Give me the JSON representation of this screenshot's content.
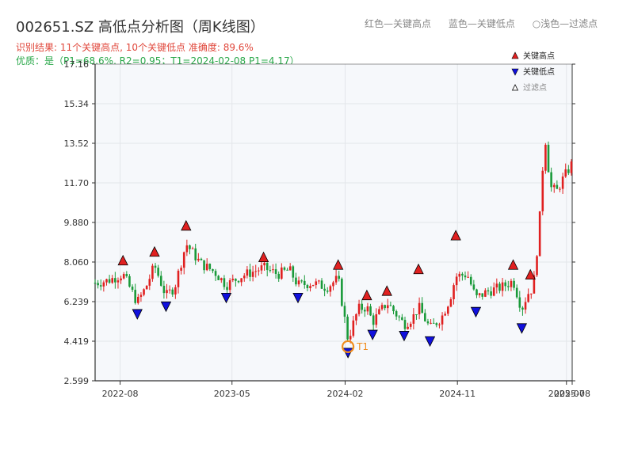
{
  "header": {
    "title": "002651.SZ 高低点分析图（周K线图）",
    "subtitle_items": [
      "红色—关键高点",
      "蓝色—关键低点",
      "○浅色—过滤点"
    ],
    "info_line1": "识别结果: 11个关键高点, 10个关键低点  准确度: 89.6%",
    "info_line2": "优质：是（P1=68.6%, R2=0.95；T1=2024-02-08 P1=4.17）"
  },
  "colors": {
    "up": "#e02020",
    "down": "#1a9a3a",
    "high_marker": "#e02020",
    "low_marker": "#1010dd",
    "t1_ring": "#f08c1c",
    "plot_bg": "#f6f8fb",
    "grid": "#e3e6ea",
    "axis": "#333333"
  },
  "chart_data": {
    "type": "candlestick",
    "y_ticks": [
      "2.599",
      "4.419",
      "6.239",
      "8.060",
      "9.880",
      "11.70",
      "13.52",
      "15.34",
      "17.16"
    ],
    "y_range": [
      2.599,
      17.16
    ],
    "x_range": [
      "2022-06-01",
      "2025-08-08"
    ],
    "x_ticks": [
      {
        "date": "2022-08-01",
        "label": "2022-08"
      },
      {
        "date": "2023-05-01",
        "label": "2023-05"
      },
      {
        "date": "2024-02-01",
        "label": "2024-02"
      },
      {
        "date": "2024-11-01",
        "label": "2024-11"
      },
      {
        "date": "2025-07-25",
        "label": "2025-07"
      },
      {
        "date": "2025-08-08",
        "label": "2025-08"
      }
    ],
    "legend": [
      {
        "label": "关键高点",
        "marker": "high"
      },
      {
        "label": "关键低点",
        "marker": "low"
      },
      {
        "label": "过滤点",
        "marker": "filtered"
      }
    ],
    "annotation": {
      "label": "T1",
      "date": "2024-02-08",
      "value": 4.17
    },
    "high_points": [
      {
        "date": "2022-08-08",
        "value": 7.85
      },
      {
        "date": "2022-10-24",
        "value": 8.25
      },
      {
        "date": "2023-01-09",
        "value": 9.45
      },
      {
        "date": "2023-07-17",
        "value": 8.0
      },
      {
        "date": "2024-01-15",
        "value": 7.65
      },
      {
        "date": "2024-03-25",
        "value": 6.25
      },
      {
        "date": "2024-05-13",
        "value": 6.45
      },
      {
        "date": "2024-07-29",
        "value": 7.45
      },
      {
        "date": "2024-10-28",
        "value": 9.0
      },
      {
        "date": "2025-03-17",
        "value": 7.65
      },
      {
        "date": "2025-04-28",
        "value": 7.2
      }
    ],
    "low_points": [
      {
        "date": "2022-09-12",
        "value": 5.95
      },
      {
        "date": "2022-11-21",
        "value": 6.3
      },
      {
        "date": "2023-04-17",
        "value": 6.7
      },
      {
        "date": "2023-10-09",
        "value": 6.7
      },
      {
        "date": "2024-02-08",
        "value": 4.17
      },
      {
        "date": "2024-04-08",
        "value": 5.0
      },
      {
        "date": "2024-06-24",
        "value": 4.95
      },
      {
        "date": "2024-08-26",
        "value": 4.7
      },
      {
        "date": "2024-12-16",
        "value": 6.05
      },
      {
        "date": "2025-04-07",
        "value": 5.3
      }
    ],
    "price_path": [
      [
        "2022-06-01",
        7.1
      ],
      [
        "2022-07-01",
        7.2
      ],
      [
        "2022-08-08",
        7.5
      ],
      [
        "2022-09-12",
        6.2
      ],
      [
        "2022-10-03",
        6.9
      ],
      [
        "2022-10-24",
        7.9
      ],
      [
        "2022-11-21",
        6.5
      ],
      [
        "2022-12-12",
        6.9
      ],
      [
        "2023-01-09",
        8.9
      ],
      [
        "2023-02-13",
        8.0
      ],
      [
        "2023-03-20",
        7.6
      ],
      [
        "2023-04-17",
        7.0
      ],
      [
        "2023-05-22",
        7.4
      ],
      [
        "2023-07-17",
        7.8
      ],
      [
        "2023-08-21",
        7.5
      ],
      [
        "2023-09-18",
        7.7
      ],
      [
        "2023-10-09",
        7.0
      ],
      [
        "2023-11-13",
        7.1
      ],
      [
        "2023-12-18",
        6.9
      ],
      [
        "2024-01-15",
        7.3
      ],
      [
        "2024-02-08",
        4.5
      ],
      [
        "2024-03-04",
        5.9
      ],
      [
        "2024-03-25",
        6.0
      ],
      [
        "2024-04-08",
        5.3
      ],
      [
        "2024-05-13",
        6.2
      ],
      [
        "2024-06-24",
        5.2
      ],
      [
        "2024-07-15",
        5.5
      ],
      [
        "2024-07-29",
        6.0
      ],
      [
        "2024-08-26",
        5.0
      ],
      [
        "2024-09-23",
        5.5
      ],
      [
        "2024-10-14",
        6.4
      ],
      [
        "2024-10-28",
        7.4
      ],
      [
        "2024-11-25",
        7.5
      ],
      [
        "2024-12-16",
        6.4
      ],
      [
        "2025-01-13",
        6.7
      ],
      [
        "2025-02-17",
        6.9
      ],
      [
        "2025-03-17",
        7.2
      ],
      [
        "2025-04-07",
        5.9
      ],
      [
        "2025-04-21",
        6.6
      ],
      [
        "2025-05-05",
        6.9
      ],
      [
        "2025-05-19",
        9.5
      ],
      [
        "2025-06-02",
        14.0
      ],
      [
        "2025-06-16",
        11.5
      ],
      [
        "2025-07-01",
        11.3
      ],
      [
        "2025-07-14",
        11.8
      ],
      [
        "2025-08-08",
        12.6
      ]
    ],
    "grid": true
  }
}
